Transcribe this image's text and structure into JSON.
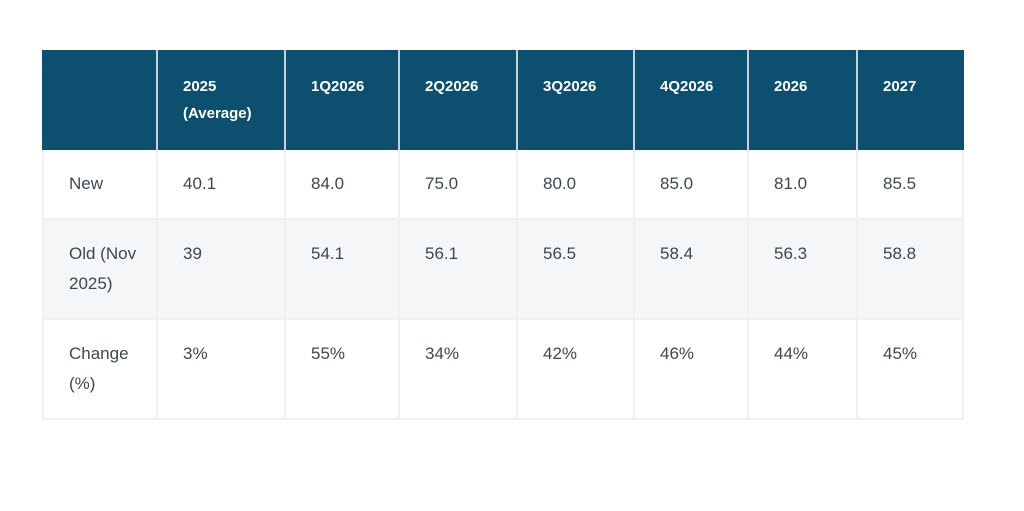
{
  "chart_data": {
    "type": "table",
    "columns": [
      "",
      "2025 (Average)",
      "1Q2026",
      "2Q2026",
      "3Q2026",
      "4Q2026",
      "2026",
      "2027"
    ],
    "rows": [
      {
        "label": "New",
        "values": [
          "40.1",
          "84.0",
          "75.0",
          "80.0",
          "85.0",
          "81.0",
          "85.5"
        ]
      },
      {
        "label": "Old (Nov 2025)",
        "values": [
          "39",
          "54.1",
          "56.1",
          "56.5",
          "58.4",
          "56.3",
          "58.8"
        ]
      },
      {
        "label": "Change (%)",
        "values": [
          "3%",
          "55%",
          "34%",
          "42%",
          "46%",
          "44%",
          "45%"
        ]
      }
    ],
    "layout": {
      "grid": "on",
      "striped_row_index": 1
    }
  },
  "colors": {
    "header_bg": "#0d4f6e",
    "header_text": "#ffffff",
    "header_divider": "#c5d0d7",
    "body_text": "#3d4752",
    "stripe_bg": "#f5f6f8",
    "border": "#eef0f1",
    "page_bg": "#ffffff"
  }
}
